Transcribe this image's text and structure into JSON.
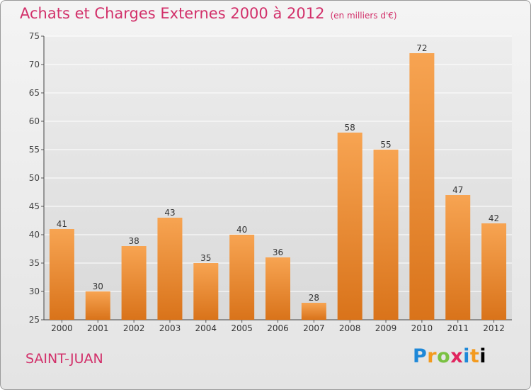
{
  "chart_data": {
    "type": "bar",
    "title": "Achats et Charges Externes 2000 à 2012",
    "subtitle": "(en milliers d'€)",
    "categories": [
      "2000",
      "2001",
      "2002",
      "2003",
      "2004",
      "2005",
      "2006",
      "2007",
      "2008",
      "2009",
      "2010",
      "2011",
      "2012"
    ],
    "values": [
      41,
      30,
      38,
      43,
      35,
      40,
      36,
      28,
      58,
      55,
      72,
      47,
      42
    ],
    "ylim": [
      25,
      75
    ],
    "yticks": [
      25,
      30,
      35,
      40,
      45,
      50,
      55,
      60,
      65,
      70,
      75
    ],
    "grid": true,
    "legend": "none",
    "colors": {
      "bar_top": "#f7a452",
      "bar_bottom": "#d9731a",
      "title": "#d2306a"
    }
  },
  "footer": {
    "town": "SAINT-JUAN",
    "logo": "Proxiti"
  }
}
